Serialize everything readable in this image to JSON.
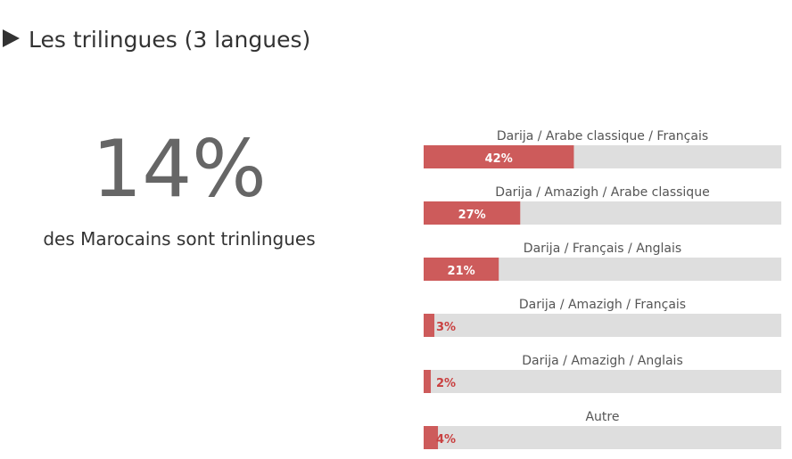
{
  "header": {
    "title": "Les trilingues (3 langues)"
  },
  "stat": {
    "value": "14%",
    "caption": "des Marocains sont trinlingues"
  },
  "chart_data": {
    "type": "bar",
    "orientation": "horizontal",
    "categories": [
      "Darija / Arabe classique / Français",
      "Darija / Amazigh / Arabe classique",
      "Darija / Français / Anglais",
      "Darija / Amazigh / Français",
      "Darija / Amazigh / Anglais",
      "Autre"
    ],
    "values": [
      42,
      27,
      21,
      3,
      2,
      4
    ],
    "value_labels": [
      "42%",
      "27%",
      "21%",
      "3%",
      "2%",
      "4%"
    ],
    "color": "#cd5b5b",
    "track_color": "#dedede",
    "xlim": [
      0,
      100
    ]
  }
}
